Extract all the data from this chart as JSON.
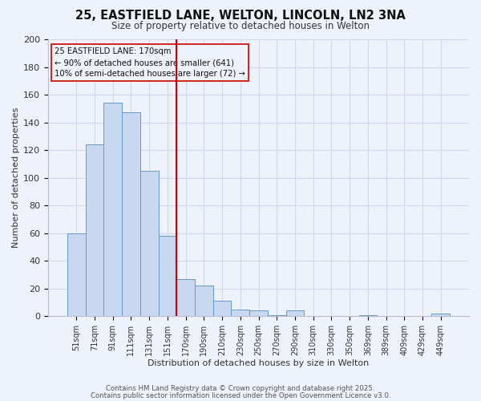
{
  "title": "25, EASTFIELD LANE, WELTON, LINCOLN, LN2 3NA",
  "subtitle": "Size of property relative to detached houses in Welton",
  "xlabel": "Distribution of detached houses by size in Welton",
  "ylabel": "Number of detached properties",
  "bar_labels": [
    "51sqm",
    "71sqm",
    "91sqm",
    "111sqm",
    "131sqm",
    "151sqm",
    "170sqm",
    "190sqm",
    "210sqm",
    "230sqm",
    "250sqm",
    "270sqm",
    "290sqm",
    "310sqm",
    "330sqm",
    "350sqm",
    "369sqm",
    "389sqm",
    "409sqm",
    "429sqm",
    "449sqm"
  ],
  "bar_values": [
    60,
    124,
    154,
    147,
    105,
    58,
    27,
    22,
    11,
    5,
    4,
    1,
    4,
    0,
    0,
    0,
    1,
    0,
    0,
    0,
    2
  ],
  "bar_color": "#c8d8f0",
  "bar_edge_color": "#6699cc",
  "highlight_x": "170sqm",
  "highlight_color": "#cc0000",
  "ylim": [
    0,
    200
  ],
  "yticks": [
    0,
    20,
    40,
    60,
    80,
    100,
    120,
    140,
    160,
    180,
    200
  ],
  "annotation_title": "25 EASTFIELD LANE: 170sqm",
  "annotation_line1": "← 90% of detached houses are smaller (641)",
  "annotation_line2": "10% of semi-detached houses are larger (72) →",
  "annotation_box_edge": "#cc0000",
  "bg_color": "#eef2fb",
  "grid_color": "#d0d8ee",
  "footer1": "Contains HM Land Registry data © Crown copyright and database right 2025.",
  "footer2": "Contains public sector information licensed under the Open Government Licence v3.0."
}
